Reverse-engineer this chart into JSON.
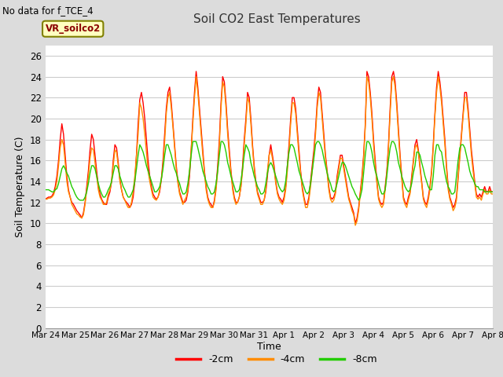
{
  "title": "Soil CO2 East Temperatures",
  "subtitle": "No data for f_TCE_4",
  "xlabel": "Time",
  "ylabel": "Soil Temperature (C)",
  "ylim": [
    0,
    27
  ],
  "yticks": [
    0,
    2,
    4,
    6,
    8,
    10,
    12,
    14,
    16,
    18,
    20,
    22,
    24,
    26
  ],
  "legend_label": "VR_soilco2",
  "line_labels": [
    "-2cm",
    "-4cm",
    "-8cm"
  ],
  "line_colors": [
    "#FF0000",
    "#FF8C00",
    "#22CC00"
  ],
  "bg_color": "#DCDCDC",
  "plot_bg_color": "#FFFFFF",
  "xtick_labels": [
    "Mar 24",
    "Mar 25",
    "Mar 26",
    "Mar 27",
    "Mar 28",
    "Mar 29",
    "Mar 30",
    "Mar 31",
    "Apr 1",
    "Apr 2",
    "Apr 3",
    "Apr 4",
    "Apr 5",
    "Apr 6",
    "Apr 7",
    "Apr 8"
  ],
  "n_days": 16,
  "data_2cm": [
    12.3,
    12.4,
    12.5,
    12.5,
    12.6,
    12.9,
    13.5,
    14.5,
    16.0,
    18.0,
    19.5,
    18.5,
    16.5,
    14.5,
    13.2,
    12.5,
    12.0,
    11.8,
    11.5,
    11.2,
    11.0,
    10.8,
    10.5,
    11.0,
    12.0,
    13.5,
    15.0,
    17.0,
    18.5,
    18.0,
    16.5,
    15.0,
    13.5,
    12.8,
    12.3,
    12.0,
    11.8,
    11.8,
    12.5,
    13.0,
    14.0,
    16.0,
    17.5,
    17.2,
    15.8,
    14.2,
    13.2,
    12.5,
    12.2,
    12.0,
    11.8,
    11.5,
    11.8,
    12.5,
    14.0,
    16.5,
    19.5,
    21.8,
    22.5,
    21.5,
    20.0,
    18.0,
    16.0,
    14.5,
    13.5,
    12.8,
    12.5,
    12.3,
    12.5,
    13.0,
    14.2,
    16.0,
    18.5,
    21.0,
    22.5,
    23.0,
    21.5,
    19.5,
    17.5,
    15.5,
    14.0,
    13.0,
    12.5,
    12.0,
    12.0,
    12.2,
    13.0,
    14.5,
    17.0,
    20.0,
    22.5,
    24.5,
    23.0,
    21.0,
    19.0,
    17.0,
    15.0,
    13.5,
    12.5,
    12.0,
    11.8,
    11.5,
    12.2,
    13.5,
    15.5,
    18.0,
    21.5,
    24.0,
    23.5,
    21.5,
    19.0,
    17.0,
    15.0,
    13.5,
    12.5,
    12.0,
    12.0,
    12.5,
    13.5,
    15.5,
    18.0,
    20.0,
    22.5,
    22.0,
    20.0,
    17.5,
    15.5,
    14.0,
    13.0,
    12.5,
    12.0,
    12.0,
    12.2,
    13.0,
    14.5,
    16.5,
    17.5,
    16.5,
    15.5,
    14.0,
    13.0,
    12.5,
    12.3,
    12.0,
    12.5,
    13.5,
    15.5,
    17.5,
    20.0,
    22.0,
    22.0,
    21.0,
    19.0,
    17.0,
    15.0,
    13.5,
    12.5,
    11.8,
    11.8,
    12.5,
    14.0,
    15.5,
    17.0,
    19.0,
    21.5,
    23.0,
    22.5,
    20.5,
    18.5,
    16.5,
    15.0,
    13.5,
    12.5,
    12.3,
    12.5,
    13.0,
    14.5,
    15.5,
    16.5,
    16.5,
    15.5,
    14.5,
    13.5,
    12.5,
    12.0,
    11.5,
    11.0,
    10.0,
    10.5,
    11.5,
    13.0,
    14.5,
    16.5,
    19.5,
    24.5,
    24.0,
    22.5,
    20.5,
    18.0,
    16.0,
    14.0,
    12.5,
    12.0,
    11.8,
    12.0,
    13.5,
    15.0,
    17.5,
    21.0,
    24.0,
    24.5,
    23.5,
    21.5,
    19.0,
    16.5,
    14.5,
    12.5,
    12.0,
    11.8,
    12.5,
    13.0,
    14.5,
    16.0,
    17.5,
    18.0,
    17.0,
    15.5,
    14.0,
    12.5,
    12.0,
    11.8,
    12.5,
    13.5,
    15.0,
    17.5,
    20.5,
    23.0,
    24.5,
    23.5,
    22.0,
    20.0,
    18.0,
    15.5,
    13.5,
    12.5,
    12.0,
    11.5,
    11.8,
    12.5,
    14.5,
    16.5,
    18.5,
    20.5,
    22.5,
    22.5,
    21.0,
    19.0,
    17.0,
    15.5,
    14.0,
    12.8,
    12.5,
    12.8,
    12.5,
    13.0,
    13.5,
    13.0,
    13.0,
    13.5,
    13.0,
    13.0
  ],
  "data_4cm": [
    12.3,
    12.3,
    12.4,
    12.4,
    12.5,
    12.7,
    13.2,
    14.0,
    15.5,
    17.2,
    18.0,
    17.5,
    15.8,
    14.0,
    13.0,
    12.5,
    11.8,
    11.5,
    11.2,
    10.9,
    10.8,
    10.6,
    10.5,
    10.8,
    11.8,
    13.2,
    14.5,
    16.2,
    17.2,
    17.0,
    15.8,
    14.5,
    13.2,
    12.5,
    12.2,
    11.8,
    11.8,
    12.0,
    12.8,
    13.2,
    14.0,
    15.5,
    17.0,
    16.8,
    15.5,
    14.0,
    13.2,
    12.5,
    12.2,
    11.8,
    11.5,
    11.5,
    12.0,
    13.0,
    14.5,
    16.5,
    18.5,
    21.5,
    21.0,
    20.0,
    18.5,
    16.8,
    15.0,
    14.0,
    13.2,
    12.5,
    12.3,
    12.2,
    12.5,
    13.2,
    14.2,
    15.5,
    17.8,
    20.5,
    22.0,
    22.5,
    21.0,
    19.2,
    17.2,
    15.2,
    13.8,
    12.8,
    12.3,
    11.8,
    12.2,
    12.5,
    13.2,
    15.0,
    17.0,
    19.5,
    22.0,
    24.0,
    22.5,
    20.5,
    18.5,
    16.5,
    14.8,
    13.2,
    12.3,
    11.8,
    11.5,
    11.5,
    12.0,
    13.2,
    15.0,
    17.5,
    21.0,
    23.5,
    23.0,
    21.0,
    18.5,
    16.5,
    14.8,
    13.2,
    12.3,
    11.8,
    12.0,
    12.5,
    13.5,
    15.0,
    17.5,
    19.5,
    22.0,
    21.5,
    19.5,
    17.2,
    15.2,
    13.8,
    12.8,
    12.3,
    11.8,
    11.8,
    12.2,
    13.2,
    15.0,
    16.5,
    17.0,
    16.2,
    15.2,
    13.8,
    12.8,
    12.3,
    12.0,
    11.8,
    12.2,
    13.2,
    15.0,
    17.0,
    19.5,
    21.5,
    21.5,
    20.5,
    18.5,
    16.5,
    14.8,
    13.2,
    12.3,
    11.5,
    11.5,
    12.2,
    13.5,
    15.0,
    16.5,
    18.5,
    21.0,
    22.5,
    22.0,
    20.0,
    18.0,
    16.2,
    14.8,
    13.2,
    12.3,
    12.0,
    12.2,
    12.8,
    14.2,
    15.2,
    16.2,
    16.2,
    15.2,
    14.2,
    13.2,
    12.3,
    11.8,
    11.2,
    10.8,
    9.8,
    10.2,
    11.2,
    12.8,
    14.2,
    16.2,
    19.2,
    24.0,
    23.5,
    22.0,
    20.0,
    17.5,
    15.5,
    13.8,
    12.3,
    11.8,
    11.5,
    11.8,
    13.2,
    14.8,
    17.2,
    20.5,
    23.5,
    24.0,
    23.0,
    21.0,
    18.5,
    16.2,
    14.2,
    12.3,
    11.8,
    11.5,
    12.2,
    12.8,
    14.2,
    15.8,
    17.2,
    17.5,
    16.8,
    15.2,
    13.8,
    12.3,
    11.8,
    11.5,
    12.2,
    13.2,
    14.8,
    17.2,
    20.2,
    22.5,
    24.0,
    23.0,
    21.5,
    19.5,
    17.5,
    15.2,
    13.2,
    12.3,
    11.8,
    11.2,
    11.5,
    12.2,
    14.2,
    16.2,
    18.2,
    20.2,
    22.0,
    22.0,
    20.5,
    18.5,
    16.5,
    15.0,
    13.8,
    12.5,
    12.3,
    12.5,
    12.2,
    12.8,
    13.2,
    12.8,
    12.8,
    13.2,
    12.8,
    12.8
  ],
  "data_8cm": [
    13.2,
    13.2,
    13.2,
    13.1,
    13.0,
    13.0,
    13.2,
    13.3,
    13.8,
    14.5,
    15.2,
    15.5,
    15.2,
    14.8,
    14.5,
    14.0,
    13.5,
    13.2,
    12.8,
    12.5,
    12.3,
    12.2,
    12.2,
    12.2,
    12.5,
    13.0,
    13.8,
    14.8,
    15.5,
    15.5,
    15.2,
    14.5,
    13.8,
    13.2,
    12.8,
    12.5,
    12.5,
    12.8,
    13.2,
    13.5,
    14.0,
    14.8,
    15.5,
    15.5,
    15.2,
    14.5,
    14.0,
    13.5,
    13.2,
    12.8,
    12.5,
    12.5,
    12.8,
    13.2,
    14.0,
    15.2,
    16.5,
    17.5,
    17.2,
    16.8,
    16.2,
    15.5,
    15.0,
    14.5,
    14.0,
    13.5,
    13.0,
    13.0,
    13.2,
    13.5,
    14.2,
    15.2,
    16.5,
    17.5,
    17.5,
    17.0,
    16.5,
    15.8,
    15.2,
    14.8,
    14.2,
    13.8,
    13.2,
    12.8,
    12.8,
    13.0,
    13.8,
    15.0,
    16.5,
    17.8,
    17.8,
    17.8,
    17.2,
    16.5,
    15.8,
    15.0,
    14.5,
    14.0,
    13.5,
    13.2,
    12.8,
    12.8,
    13.0,
    13.8,
    15.0,
    16.5,
    17.8,
    17.8,
    17.5,
    16.8,
    15.8,
    15.2,
    14.5,
    14.0,
    13.5,
    13.0,
    13.0,
    13.2,
    14.0,
    15.2,
    16.5,
    17.5,
    17.2,
    16.8,
    15.8,
    15.2,
    14.5,
    14.0,
    13.5,
    13.2,
    12.8,
    12.8,
    13.0,
    13.8,
    14.8,
    15.5,
    15.8,
    15.5,
    15.0,
    14.5,
    14.0,
    13.5,
    13.2,
    13.0,
    13.2,
    14.0,
    15.5,
    16.8,
    17.5,
    17.5,
    17.2,
    16.5,
    15.8,
    15.0,
    14.5,
    14.0,
    13.5,
    13.0,
    12.8,
    13.0,
    13.8,
    15.0,
    16.2,
    17.5,
    17.8,
    17.8,
    17.5,
    17.0,
    16.2,
    15.5,
    14.8,
    14.2,
    13.8,
    13.2,
    13.0,
    13.2,
    13.8,
    14.5,
    15.2,
    15.8,
    15.8,
    15.5,
    15.0,
    14.5,
    14.0,
    13.5,
    13.2,
    12.8,
    12.5,
    12.2,
    12.5,
    13.2,
    14.8,
    16.5,
    17.8,
    17.8,
    17.5,
    16.8,
    15.8,
    15.0,
    14.5,
    13.8,
    13.2,
    12.8,
    12.8,
    13.2,
    14.5,
    16.0,
    17.2,
    17.8,
    17.8,
    17.5,
    16.8,
    15.8,
    15.2,
    14.5,
    14.0,
    13.5,
    13.2,
    13.0,
    13.2,
    13.8,
    14.8,
    15.5,
    16.8,
    16.8,
    16.5,
    15.8,
    15.2,
    14.5,
    14.0,
    13.5,
    13.2,
    13.2,
    14.5,
    16.5,
    17.5,
    17.5,
    17.0,
    16.8,
    15.8,
    14.8,
    14.0,
    13.5,
    13.2,
    12.8,
    12.8,
    13.0,
    14.5,
    16.0,
    17.2,
    17.5,
    17.5,
    17.2,
    16.5,
    15.8,
    15.0,
    14.5,
    14.2,
    13.8,
    13.5,
    13.5,
    13.2,
    13.2,
    13.2,
    13.0,
    13.0,
    13.0,
    13.0,
    13.0,
    13.0
  ]
}
